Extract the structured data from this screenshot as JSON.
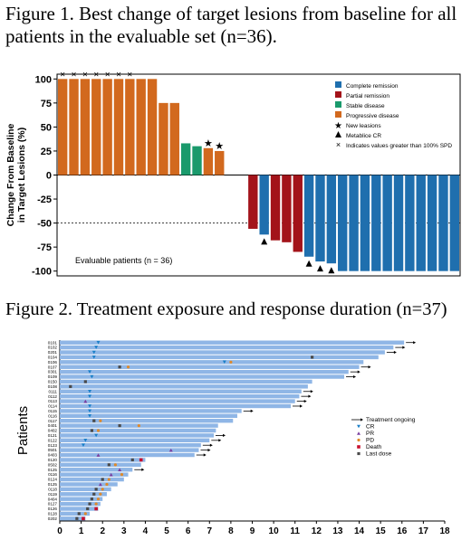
{
  "figure1": {
    "title": "Figure 1. Best change of target lesions from baseline for all patients in the evaluable set (n=36)."
  },
  "figure2": {
    "title": "Figure 2. Treatment exposure and response duration (n=37)"
  },
  "colors": {
    "complete_remission": "#1f6fae",
    "partial_remission": "#a3131a",
    "stable_disease": "#1a9a6c",
    "progressive_disease": "#d2691e",
    "treatment_bar": "#8fb6e6",
    "cr_marker": "#1a7fc8",
    "pr_marker": "#7a3fa0",
    "pd_marker": "#e08a2a",
    "death_marker": "#c8102e",
    "last_dose_marker": "#4a4a4a"
  },
  "chart_data": [
    {
      "type": "bar",
      "ylabel": "Change From Baseline\nin Target Lesions (%)",
      "ylim": [
        -105,
        105
      ],
      "yticks": [
        100,
        75,
        50,
        25,
        0,
        -25,
        -50,
        -75,
        -100
      ],
      "reference_line": -50,
      "annotation": "Evaluable patients (n = 36)",
      "legend": [
        {
          "label": "Complete remission",
          "color": "#1f6fae",
          "marker": "square"
        },
        {
          "label": "Partial remission",
          "color": "#a3131a",
          "marker": "square"
        },
        {
          "label": "Stable disease",
          "color": "#1a9a6c",
          "marker": "square"
        },
        {
          "label": "Progressive disease",
          "color": "#d2691e",
          "marker": "square"
        },
        {
          "label": "New leasions",
          "color": "#000000",
          "marker": "star"
        },
        {
          "label": "Metablice CR",
          "color": "#000000",
          "marker": "triangle"
        },
        {
          "label": "Indicates values greater  than 100% SPD",
          "color": "#000000",
          "marker": "x"
        }
      ],
      "bars": [
        {
          "value": 100,
          "response": "progressive_disease",
          "above100": true
        },
        {
          "value": 100,
          "response": "progressive_disease",
          "above100": true
        },
        {
          "value": 100,
          "response": "progressive_disease",
          "above100": true
        },
        {
          "value": 100,
          "response": "progressive_disease",
          "above100": true
        },
        {
          "value": 100,
          "response": "progressive_disease",
          "above100": true
        },
        {
          "value": 100,
          "response": "progressive_disease",
          "above100": true
        },
        {
          "value": 100,
          "response": "progressive_disease",
          "above100": true
        },
        {
          "value": 100,
          "response": "progressive_disease"
        },
        {
          "value": 100,
          "response": "progressive_disease"
        },
        {
          "value": 75,
          "response": "progressive_disease"
        },
        {
          "value": 75,
          "response": "progressive_disease"
        },
        {
          "value": 33,
          "response": "stable_disease"
        },
        {
          "value": 30,
          "response": "stable_disease"
        },
        {
          "value": 28,
          "response": "progressive_disease",
          "new_lesion": true
        },
        {
          "value": 25,
          "response": "progressive_disease",
          "new_lesion": true
        },
        {
          "value": 0,
          "response": "none"
        },
        {
          "value": 0,
          "response": "none"
        },
        {
          "value": -56,
          "response": "partial_remission"
        },
        {
          "value": -62,
          "response": "complete_remission",
          "metabolic_cr": true
        },
        {
          "value": -68,
          "response": "partial_remission"
        },
        {
          "value": -70,
          "response": "partial_remission"
        },
        {
          "value": -80,
          "response": "partial_remission"
        },
        {
          "value": -85,
          "response": "complete_remission",
          "metabolic_cr": true
        },
        {
          "value": -90,
          "response": "complete_remission",
          "metabolic_cr": true
        },
        {
          "value": -92,
          "response": "complete_remission",
          "metabolic_cr": true
        },
        {
          "value": -100,
          "response": "complete_remission"
        },
        {
          "value": -100,
          "response": "complete_remission"
        },
        {
          "value": -100,
          "response": "complete_remission"
        },
        {
          "value": -100,
          "response": "complete_remission"
        },
        {
          "value": -100,
          "response": "complete_remission"
        },
        {
          "value": -100,
          "response": "complete_remission"
        },
        {
          "value": -100,
          "response": "complete_remission"
        },
        {
          "value": -100,
          "response": "complete_remission"
        },
        {
          "value": -100,
          "response": "complete_remission"
        },
        {
          "value": -100,
          "response": "complete_remission"
        },
        {
          "value": -100,
          "response": "complete_remission"
        }
      ]
    },
    {
      "type": "bar",
      "orientation": "horizontal",
      "ylabel": "Patients",
      "xlim": [
        0,
        18
      ],
      "xticks": [
        0,
        1,
        2,
        3,
        4,
        5,
        6,
        7,
        8,
        9,
        10,
        11,
        12,
        13,
        14,
        15,
        16,
        17,
        18
      ],
      "legend": [
        {
          "label": "Treatment ongoing",
          "marker": "arrow",
          "color": "#000000"
        },
        {
          "label": "CR",
          "marker": "triangle-down",
          "color": "#1a7fc8"
        },
        {
          "label": "PR",
          "marker": "triangle-up",
          "color": "#7a3fa0"
        },
        {
          "label": "PD",
          "marker": "dot",
          "color": "#e08a2a"
        },
        {
          "label": "Death",
          "marker": "square",
          "color": "#c8102e"
        },
        {
          "label": "Last dose",
          "marker": "square-x",
          "color": "#4a4a4a"
        }
      ],
      "patients": [
        {
          "id": "0101",
          "duration": 16.1,
          "ongoing": true,
          "cr": 1.8
        },
        {
          "id": "0102",
          "duration": 15.6,
          "ongoing": true,
          "cr": 1.7
        },
        {
          "id": "0201",
          "duration": 15.2,
          "ongoing": true,
          "cr": 1.6
        },
        {
          "id": "0104",
          "duration": 14.9,
          "cr": 1.6,
          "last_dose": 11.8
        },
        {
          "id": "0106",
          "duration": 14.2,
          "cr": 7.7,
          "pd": 8.0
        },
        {
          "id": "0107",
          "duration": 14.0,
          "ongoing": true,
          "last_dose": 2.8,
          "pd": 3.2
        },
        {
          "id": "0301",
          "duration": 13.5,
          "ongoing": true,
          "cr": 1.4
        },
        {
          "id": "0109",
          "duration": 13.3,
          "ongoing": true,
          "cr": 1.5
        },
        {
          "id": "0150",
          "duration": 11.8,
          "last_dose": 1.2
        },
        {
          "id": "0108",
          "duration": 11.6,
          "last_dose": 0.5
        },
        {
          "id": "0111",
          "duration": 11.3,
          "ongoing": true,
          "cr": 1.4
        },
        {
          "id": "0112",
          "duration": 11.2,
          "ongoing": true,
          "cr": 1.4
        },
        {
          "id": "0113",
          "duration": 11.0,
          "ongoing": true,
          "pr": 1.2
        },
        {
          "id": "0114",
          "duration": 10.8,
          "ongoing": true,
          "cr": 1.4
        },
        {
          "id": "0115",
          "duration": 8.5,
          "ongoing": true,
          "cr": 1.4
        },
        {
          "id": "0116",
          "duration": 8.3,
          "cr": 1.4
        },
        {
          "id": "0117",
          "duration": 8.1,
          "last_dose": 1.6,
          "pd": 1.9
        },
        {
          "id": "0401",
          "duration": 7.4,
          "last_dose": 2.8,
          "pd": 3.7
        },
        {
          "id": "0402",
          "duration": 7.3,
          "last_dose": 1.5,
          "pd": 1.8
        },
        {
          "id": "0121",
          "duration": 7.2,
          "ongoing": true,
          "cr": 1.7
        },
        {
          "id": "0122",
          "duration": 7.0,
          "ongoing": true,
          "cr": 1.2
        },
        {
          "id": "0123",
          "duration": 6.6,
          "ongoing": true,
          "cr": 1.1
        },
        {
          "id": "0501",
          "duration": 6.5,
          "ongoing": true,
          "pr": 5.2
        },
        {
          "id": "0403",
          "duration": 6.3,
          "ongoing": true,
          "pr": 1.8
        },
        {
          "id": "0120",
          "duration": 4.0,
          "last_dose": 3.4,
          "death": 3.8
        },
        {
          "id": "0502",
          "duration": 3.8,
          "last_dose": 2.3,
          "pd": 2.6
        },
        {
          "id": "0125",
          "duration": 3.4,
          "ongoing": true,
          "pr": 2.8
        },
        {
          "id": "0116",
          "duration": 3.2,
          "pr": 2.4,
          "pd": 2.9
        },
        {
          "id": "0124",
          "duration": 3.0,
          "last_dose": 2.0,
          "pd": 2.3
        },
        {
          "id": "0125",
          "duration": 2.7,
          "pr": 1.9,
          "pd": 2.2
        },
        {
          "id": "0118",
          "duration": 2.4,
          "last_dose": 1.7,
          "pd": 2.0
        },
        {
          "id": "0119",
          "duration": 2.2,
          "last_dose": 1.6,
          "pd": 1.9
        },
        {
          "id": "0404",
          "duration": 2.0,
          "last_dose": 1.5,
          "pd": 1.8
        },
        {
          "id": "0127",
          "duration": 1.9,
          "last_dose": 1.4,
          "pd": 1.7
        },
        {
          "id": "0126",
          "duration": 1.8,
          "last_dose": 1.3,
          "death": 1.7
        },
        {
          "id": "0128",
          "duration": 1.4,
          "last_dose": 0.9,
          "pd": 1.2
        },
        {
          "id": "0202",
          "duration": 1.2,
          "last_dose": 0.8,
          "death": 1.1
        }
      ]
    }
  ]
}
